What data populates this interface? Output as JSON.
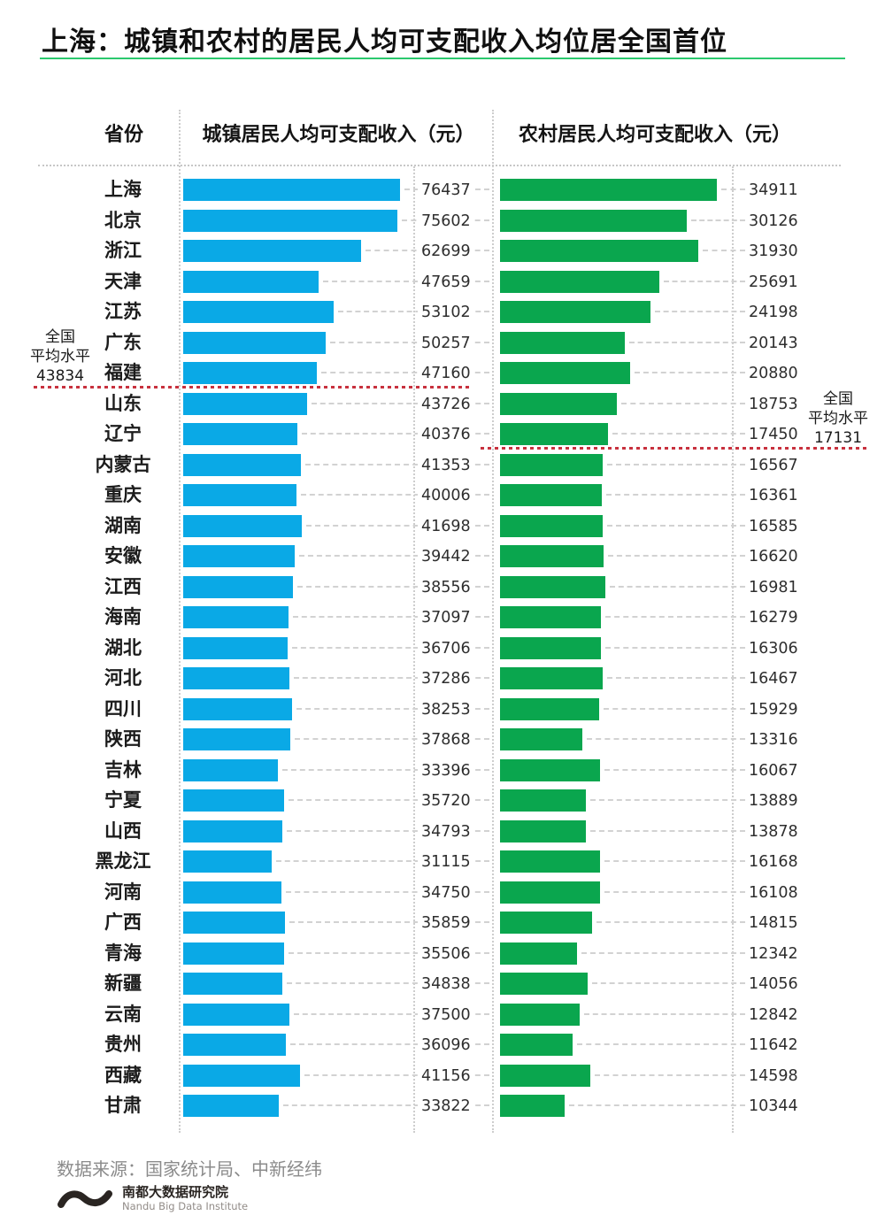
{
  "title": "上海：城镇和农村的居民人均可支配收入均位居全国首位",
  "columns": {
    "province": "省份",
    "urban": "城镇居民人均可支配收入（元）",
    "rural": "农村居民人均可支配收入（元）"
  },
  "averages": {
    "urban": {
      "label_line1": "全国",
      "label_line2": "平均水平",
      "value": "43834"
    },
    "rural": {
      "label_line1": "全国",
      "label_line2": "平均水平",
      "value": "17131"
    }
  },
  "source": "数据来源：国家统计局、中新经纬",
  "logo": {
    "icon": "wave-icon",
    "name_cn": "南都大数据研究院",
    "name_en": "Nandu Big Data Institute"
  },
  "colors": {
    "urban_bar": "#0aa9e6",
    "rural_bar": "#0aa64e",
    "average_line": "#c8313e",
    "title_underline": "#2bc96e"
  },
  "chart_data": {
    "type": "bar",
    "orientation": "horizontal",
    "title": "上海：城镇和农村的居民人均可支配收入均位居全国首位",
    "categories": [
      "上海",
      "北京",
      "浙江",
      "天津",
      "江苏",
      "广东",
      "福建",
      "山东",
      "辽宁",
      "内蒙古",
      "重庆",
      "湖南",
      "安徽",
      "江西",
      "海南",
      "湖北",
      "河北",
      "四川",
      "陕西",
      "吉林",
      "宁夏",
      "山西",
      "黑龙江",
      "河南",
      "广西",
      "青海",
      "新疆",
      "云南",
      "贵州",
      "西藏",
      "甘肃"
    ],
    "series": [
      {
        "name": "城镇居民人均可支配收入（元）",
        "color": "#0aa9e6",
        "values": [
          76437,
          75602,
          62699,
          47659,
          53102,
          50257,
          47160,
          43726,
          40376,
          41353,
          40006,
          41698,
          39442,
          38556,
          37097,
          36706,
          37286,
          38253,
          37868,
          33396,
          35720,
          34793,
          31115,
          34750,
          35859,
          35506,
          34838,
          37500,
          36096,
          41156,
          33822
        ]
      },
      {
        "name": "农村居民人均可支配收入（元）",
        "color": "#0aa64e",
        "values": [
          34911,
          30126,
          31930,
          25691,
          24198,
          20143,
          20880,
          18753,
          17450,
          16567,
          16361,
          16585,
          16620,
          16981,
          16279,
          16306,
          16467,
          15929,
          13316,
          16067,
          13889,
          13878,
          16168,
          16108,
          14815,
          12342,
          14056,
          12842,
          11642,
          14598,
          10344
        ]
      }
    ],
    "annotations": [
      {
        "series": "城镇居民人均可支配收入（元）",
        "text": "全国平均水平",
        "value": 43834,
        "position": "between 福建 and 山东"
      },
      {
        "series": "农村居民人均可支配收入（元）",
        "text": "全国平均水平",
        "value": 17131,
        "position": "between 辽宁 and 内蒙古"
      }
    ],
    "value_labels": true,
    "grid": "dashed row guides and dotted column dividers",
    "legend_position": "none",
    "xlim_urban": [
      0,
      78000
    ],
    "xlim_rural": [
      0,
      36000
    ]
  }
}
